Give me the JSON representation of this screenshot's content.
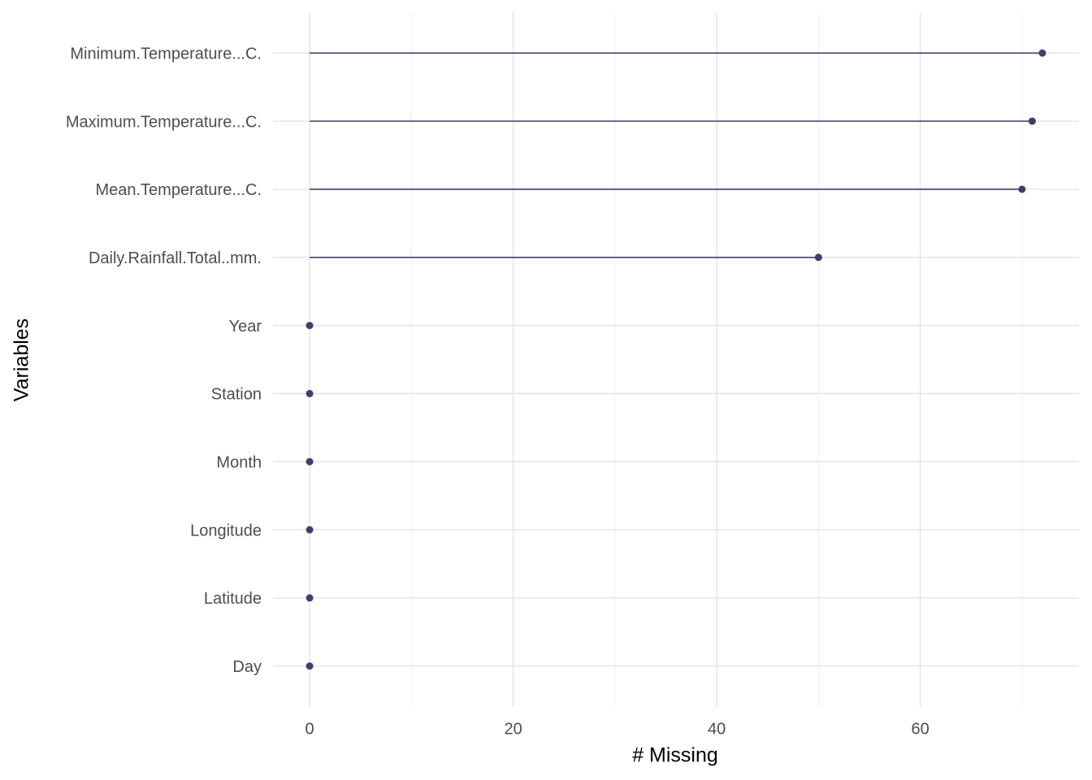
{
  "chart_data": {
    "type": "lollipop",
    "x_label": "# Missing",
    "y_label": "Variables",
    "categories": [
      "Minimum.Temperature...C.",
      "Maximum.Temperature...C.",
      "Mean.Temperature...C.",
      "Daily.Rainfall.Total..mm.",
      "Year",
      "Station",
      "Month",
      "Longitude",
      "Latitude",
      "Day"
    ],
    "values": [
      72,
      71,
      70,
      50,
      0,
      0,
      0,
      0,
      0,
      0
    ],
    "color": "#3f3f6e",
    "xlim": [
      -3.6,
      75.6
    ],
    "xticks": [
      0,
      20,
      40,
      60
    ],
    "xminor": [
      10,
      30,
      50,
      70
    ],
    "grid": true
  }
}
